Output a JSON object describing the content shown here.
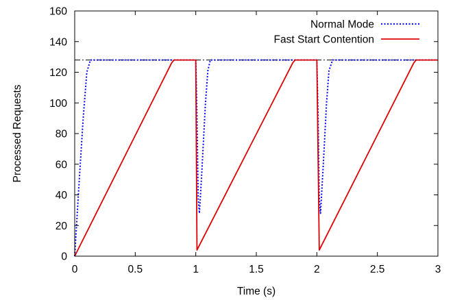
{
  "chart_data": {
    "type": "line",
    "title": "",
    "xlabel": "Time (s)",
    "ylabel": "Processed Requests",
    "xlim": [
      0,
      3
    ],
    "ylim": [
      0,
      160
    ],
    "x_ticks": [
      {
        "value": 0,
        "label": "0"
      },
      {
        "value": 0.5,
        "label": "0.5"
      },
      {
        "value": 1,
        "label": "1"
      },
      {
        "value": 1.5,
        "label": "1.5"
      },
      {
        "value": 2,
        "label": "2"
      },
      {
        "value": 2.5,
        "label": "2.5"
      },
      {
        "value": 3,
        "label": "3"
      }
    ],
    "y_ticks": [
      {
        "value": 0,
        "label": "0"
      },
      {
        "value": 20,
        "label": "20"
      },
      {
        "value": 40,
        "label": "40"
      },
      {
        "value": 60,
        "label": "60"
      },
      {
        "value": 80,
        "label": "80"
      },
      {
        "value": 100,
        "label": "100"
      },
      {
        "value": 120,
        "label": "120"
      },
      {
        "value": 140,
        "label": "140"
      },
      {
        "value": 160,
        "label": "160"
      }
    ],
    "grid": false,
    "legend_position": "top-right",
    "reference_line": {
      "y": 128,
      "style": "dash-dot",
      "color": "#000000"
    },
    "series": [
      {
        "name": "Normal Mode",
        "color": "#0000ff",
        "style": "dotted",
        "points": [
          [
            0,
            0
          ],
          [
            0.03,
            40
          ],
          [
            0.07,
            90
          ],
          [
            0.1,
            120
          ],
          [
            0.13,
            128
          ],
          [
            1.0,
            128
          ],
          [
            1.01,
            92
          ],
          [
            1.02,
            38
          ],
          [
            1.03,
            28
          ],
          [
            1.05,
            55
          ],
          [
            1.08,
            100
          ],
          [
            1.1,
            121
          ],
          [
            1.12,
            128
          ],
          [
            2.0,
            128
          ],
          [
            2.01,
            92
          ],
          [
            2.02,
            38
          ],
          [
            2.03,
            28
          ],
          [
            2.05,
            55
          ],
          [
            2.08,
            100
          ],
          [
            2.1,
            121
          ],
          [
            2.13,
            128
          ],
          [
            3.0,
            128
          ]
        ]
      },
      {
        "name": "Fast Start Contention",
        "color": "#dd0000",
        "style": "solid",
        "points": [
          [
            0,
            0
          ],
          [
            0.8,
            126
          ],
          [
            0.82,
            128
          ],
          [
            1.0,
            128
          ],
          [
            1.01,
            4
          ],
          [
            1.8,
            126
          ],
          [
            1.82,
            128
          ],
          [
            2.0,
            128
          ],
          [
            2.02,
            4
          ],
          [
            2.8,
            126
          ],
          [
            2.82,
            128
          ],
          [
            3.0,
            128
          ]
        ]
      }
    ]
  }
}
